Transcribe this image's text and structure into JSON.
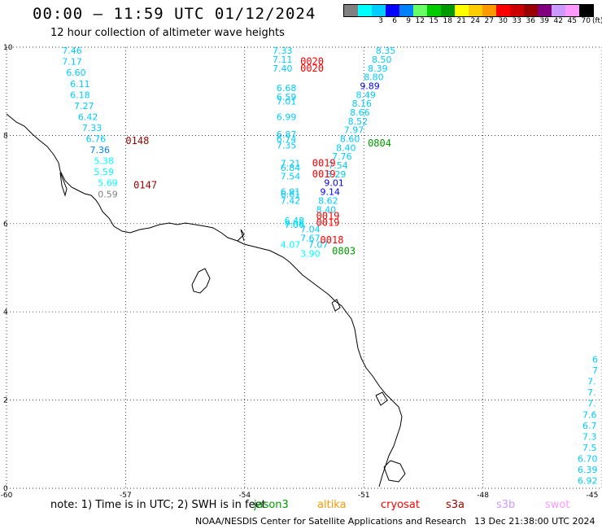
{
  "title": "00:00 – 11:59 UTC 01/12/2024",
  "subtitle": "12 hour collection of altimeter wave heights",
  "color_scale": {
    "colors": [
      "#808080",
      "#00ffff",
      "#00ccff",
      "#0000ff",
      "#0080ff",
      "#66ff66",
      "#00cc00",
      "#009900",
      "#ffff00",
      "#ffcc00",
      "#ff9900",
      "#ff0000",
      "#cc0000",
      "#990000",
      "#800080",
      "#cc99ff",
      "#ff99ff",
      "#000000"
    ],
    "labels": [
      "3",
      "6",
      "9",
      "12",
      "15",
      "18",
      "21",
      "24",
      "27",
      "30",
      "33",
      "36",
      "39",
      "42",
      "45",
      "70"
    ],
    "unit": "(ft)"
  },
  "axes": {
    "x_ticks": [
      "-60",
      "-57",
      "-54",
      "-51",
      "-48",
      "-45"
    ],
    "y_ticks": [
      "0",
      "2",
      "4",
      "6",
      "8",
      "10"
    ]
  },
  "footer": {
    "note": "note:  1) Time is in UTC; 2) SWH is in feet",
    "missions": [
      {
        "name": "jason3",
        "color": "#009900"
      },
      {
        "name": "altika",
        "color": "#ff9900"
      },
      {
        "name": "cryosat",
        "color": "#ff0000"
      },
      {
        "name": "s3a",
        "color": "#990000"
      },
      {
        "name": "s3b",
        "color": "#cc99ff"
      },
      {
        "name": "swot",
        "color": "#ff99ff"
      }
    ],
    "credit": "NOAA/NESDIS Center for Satellite Applications and Research",
    "timestamp": "13 Dec 21:38:00 UTC 2024"
  },
  "time_labels": [
    {
      "text": "0148",
      "color": "#990000",
      "lon": -57.0,
      "lat": 7.8
    },
    {
      "text": "0147",
      "color": "#990000",
      "lon": -56.8,
      "lat": 6.8
    },
    {
      "text": "0020",
      "color": "#ff0000",
      "lon": -52.6,
      "lat": 9.6
    },
    {
      "text": "0020",
      "color": "#ff0000",
      "lon": -52.6,
      "lat": 9.45
    },
    {
      "text": "0019",
      "color": "#ff0000",
      "lon": -52.3,
      "lat": 7.3
    },
    {
      "text": "0019",
      "color": "#ff0000",
      "lon": -52.3,
      "lat": 7.05
    },
    {
      "text": "0019",
      "color": "#ff0000",
      "lon": -52.2,
      "lat": 6.1
    },
    {
      "text": "0019",
      "color": "#ff0000",
      "lon": -52.2,
      "lat": 5.95
    },
    {
      "text": "0018",
      "color": "#ff0000",
      "lon": -52.1,
      "lat": 5.55
    },
    {
      "text": "0804",
      "color": "#009900",
      "lon": -50.9,
      "lat": 7.75
    },
    {
      "text": "0803",
      "color": "#009900",
      "lon": -51.8,
      "lat": 5.3
    }
  ],
  "swh_labels": [
    {
      "text": "7.46",
      "color": "#00ccff",
      "lon": -58.6,
      "lat": 9.85
    },
    {
      "text": "7.17",
      "color": "#00ccff",
      "lon": -58.6,
      "lat": 9.6
    },
    {
      "text": "6.60",
      "color": "#00ccff",
      "lon": -58.5,
      "lat": 9.35
    },
    {
      "text": "6.11",
      "color": "#00ccff",
      "lon": -58.4,
      "lat": 9.1
    },
    {
      "text": "6.18",
      "color": "#00ccff",
      "lon": -58.4,
      "lat": 8.85
    },
    {
      "text": "7.27",
      "color": "#00ccff",
      "lon": -58.3,
      "lat": 8.6
    },
    {
      "text": "6.42",
      "color": "#00ccff",
      "lon": -58.2,
      "lat": 8.35
    },
    {
      "text": "7.33",
      "color": "#00ccff",
      "lon": -58.1,
      "lat": 8.1
    },
    {
      "text": "6.76",
      "color": "#00ccff",
      "lon": -58.0,
      "lat": 7.85
    },
    {
      "text": "7.36",
      "color": "#0080ff",
      "lon": -57.9,
      "lat": 7.6
    },
    {
      "text": "5.38",
      "color": "#00ffff",
      "lon": -57.8,
      "lat": 7.35
    },
    {
      "text": "5.59",
      "color": "#00ffff",
      "lon": -57.8,
      "lat": 7.1
    },
    {
      "text": "5.69",
      "color": "#00ffff",
      "lon": -57.7,
      "lat": 6.85
    },
    {
      "text": "0.59",
      "color": "#808080",
      "lon": -57.7,
      "lat": 6.6
    },
    {
      "text": "7.33",
      "color": "#00ccff",
      "lon": -53.3,
      "lat": 9.85
    },
    {
      "text": "7.11",
      "color": "#00ccff",
      "lon": -53.3,
      "lat": 9.65
    },
    {
      "text": "7.40",
      "color": "#00ccff",
      "lon": -53.3,
      "lat": 9.45
    },
    {
      "text": "6.68",
      "color": "#00ccff",
      "lon": -53.2,
      "lat": 9.0
    },
    {
      "text": "6.59",
      "color": "#00ccff",
      "lon": -53.2,
      "lat": 8.8
    },
    {
      "text": "7.01",
      "color": "#00ccff",
      "lon": -53.2,
      "lat": 8.7
    },
    {
      "text": "6.99",
      "color": "#00ccff",
      "lon": -53.2,
      "lat": 8.35
    },
    {
      "text": "6.87",
      "color": "#00ccff",
      "lon": -53.2,
      "lat": 7.95
    },
    {
      "text": "6.74",
      "color": "#00ccff",
      "lon": -53.2,
      "lat": 7.85
    },
    {
      "text": "7.35",
      "color": "#00ccff",
      "lon": -53.2,
      "lat": 7.7
    },
    {
      "text": "7.21",
      "color": "#00ccff",
      "lon": -53.1,
      "lat": 7.3
    },
    {
      "text": "6.84",
      "color": "#00ccff",
      "lon": -53.1,
      "lat": 7.2
    },
    {
      "text": "7.54",
      "color": "#00ccff",
      "lon": -53.1,
      "lat": 7.0
    },
    {
      "text": "6.91",
      "color": "#00ccff",
      "lon": -53.1,
      "lat": 6.65
    },
    {
      "text": "6.61",
      "color": "#00ccff",
      "lon": -53.1,
      "lat": 6.6
    },
    {
      "text": "7.42",
      "color": "#00ccff",
      "lon": -53.1,
      "lat": 6.45
    },
    {
      "text": "6.48",
      "color": "#00ccff",
      "lon": -53.0,
      "lat": 6.0
    },
    {
      "text": "6.48",
      "color": "#00ffff",
      "lon": -53.0,
      "lat": 5.95
    },
    {
      "text": "7.06",
      "color": "#00ccff",
      "lon": -53.0,
      "lat": 5.9
    },
    {
      "text": "7.04",
      "color": "#00ccff",
      "lon": -52.6,
      "lat": 5.8
    },
    {
      "text": "7.67",
      "color": "#00ccff",
      "lon": -52.6,
      "lat": 5.6
    },
    {
      "text": "4.07",
      "color": "#00ffff",
      "lon": -53.1,
      "lat": 5.45
    },
    {
      "text": "7.07",
      "color": "#00ccff",
      "lon": -52.4,
      "lat": 5.45
    },
    {
      "text": "3.90",
      "color": "#00ffff",
      "lon": -52.6,
      "lat": 5.25
    },
    {
      "text": "8.35",
      "color": "#00ccff",
      "lon": -50.7,
      "lat": 9.85
    },
    {
      "text": "8.50",
      "color": "#00ccff",
      "lon": -50.8,
      "lat": 9.65
    },
    {
      "text": "8.39",
      "color": "#00ccff",
      "lon": -50.9,
      "lat": 9.45
    },
    {
      "text": "8.80",
      "color": "#00ccff",
      "lon": -51.0,
      "lat": 9.25
    },
    {
      "text": "9.89",
      "color": "#0000ff",
      "lon": -51.1,
      "lat": 9.05
    },
    {
      "text": "8.49",
      "color": "#00ccff",
      "lon": -51.2,
      "lat": 8.85
    },
    {
      "text": "8.16",
      "color": "#00ccff",
      "lon": -51.3,
      "lat": 8.65
    },
    {
      "text": "8.66",
      "color": "#00ccff",
      "lon": -51.35,
      "lat": 8.45
    },
    {
      "text": "8.52",
      "color": "#00ccff",
      "lon": -51.4,
      "lat": 8.25
    },
    {
      "text": "7.97",
      "color": "#00ccff",
      "lon": -51.5,
      "lat": 8.05
    },
    {
      "text": "8.60",
      "color": "#00ccff",
      "lon": -51.6,
      "lat": 7.85
    },
    {
      "text": "8.40",
      "color": "#00ccff",
      "lon": -51.7,
      "lat": 7.65
    },
    {
      "text": "7.76",
      "color": "#00ccff",
      "lon": -51.8,
      "lat": 7.45
    },
    {
      "text": "7.54",
      "color": "#00ccff",
      "lon": -51.9,
      "lat": 7.25
    },
    {
      "text": "8.29",
      "color": "#00ccff",
      "lon": -51.95,
      "lat": 7.05
    },
    {
      "text": "9.01",
      "color": "#0000ff",
      "lon": -52.0,
      "lat": 6.85
    },
    {
      "text": "9.14",
      "color": "#0000ff",
      "lon": -52.1,
      "lat": 6.65
    },
    {
      "text": "8.62",
      "color": "#00ccff",
      "lon": -52.15,
      "lat": 6.45
    },
    {
      "text": "8.40",
      "color": "#00ccff",
      "lon": -52.2,
      "lat": 6.25
    },
    {
      "text": "6",
      "color": "#00ccff",
      "lon": -45.0,
      "lat": 2.85
    },
    {
      "text": "7",
      "color": "#00ccff",
      "lon": -45.0,
      "lat": 2.6
    },
    {
      "text": "7.",
      "color": "#00ccff",
      "lon": -45.0,
      "lat": 2.35
    },
    {
      "text": "7.",
      "color": "#00ccff",
      "lon": -45.0,
      "lat": 2.1
    },
    {
      "text": "7.",
      "color": "#00ccff",
      "lon": -45.1,
      "lat": 1.85
    },
    {
      "text": "7.6",
      "color": "#00ccff",
      "lon": -45.2,
      "lat": 1.6
    },
    {
      "text": "6.7",
      "color": "#00ccff",
      "lon": -45.25,
      "lat": 1.35
    },
    {
      "text": "7.3",
      "color": "#00ccff",
      "lon": -45.3,
      "lat": 1.1
    },
    {
      "text": "7.5",
      "color": "#00ccff",
      "lon": -45.4,
      "lat": 0.85
    },
    {
      "text": "6.70",
      "color": "#00ccff",
      "lon": -45.5,
      "lat": 0.6
    },
    {
      "text": "6.39",
      "color": "#00ccff",
      "lon": -45.5,
      "lat": 0.35
    },
    {
      "text": "6.92",
      "color": "#00ccff",
      "lon": -45.6,
      "lat": 0.1
    }
  ]
}
